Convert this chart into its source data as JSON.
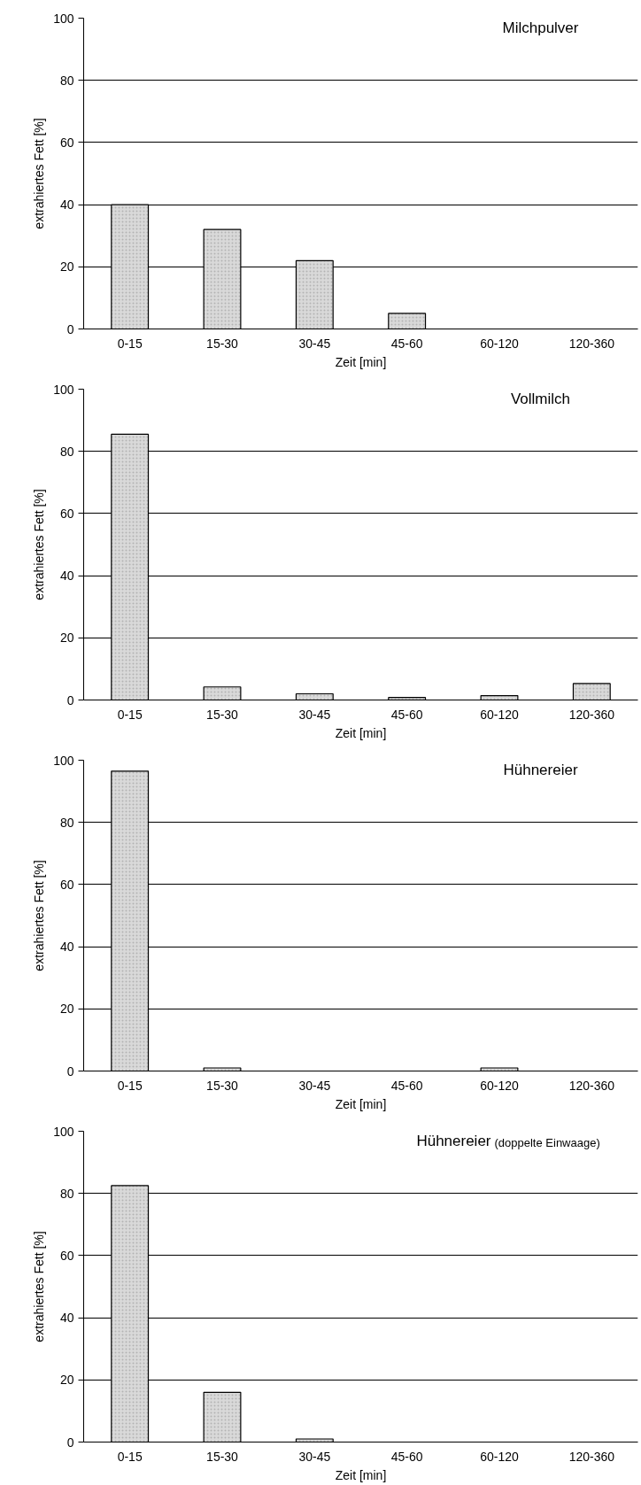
{
  "chart_data": [
    {
      "type": "bar",
      "title": "Milchpulver",
      "xlabel": "Zeit [min]",
      "ylabel": "extrahiertes Fett [%]",
      "categories": [
        "0-15",
        "15-30",
        "30-45",
        "45-60",
        "60-120",
        "120-360"
      ],
      "values": [
        40,
        32,
        22,
        5,
        0,
        0
      ],
      "color": "#d9d9d9",
      "ylim": [
        0,
        100
      ],
      "yticks": [
        0,
        20,
        40,
        60,
        80,
        100
      ],
      "grid": "y"
    },
    {
      "type": "bar",
      "title": "Vollmilch",
      "xlabel": "Zeit [min]",
      "ylabel": "extrahiertes Fett [%]",
      "categories": [
        "0-15",
        "15-30",
        "30-45",
        "45-60",
        "60-120",
        "120-360"
      ],
      "values": [
        85.5,
        4.2,
        2,
        0.8,
        1.4,
        5.3
      ],
      "color": "#d9d9d9",
      "ylim": [
        0,
        100
      ],
      "yticks": [
        0,
        20,
        40,
        60,
        80,
        100
      ],
      "grid": "y"
    },
    {
      "type": "bar",
      "title": "Hühnereier",
      "xlabel": "Zeit [min]",
      "ylabel": "extrahiertes Fett [%]",
      "categories": [
        "0-15",
        "15-30",
        "30-45",
        "45-60",
        "60-120",
        "120-360"
      ],
      "values": [
        96.5,
        1,
        0,
        0,
        1,
        0
      ],
      "color": "#d9d9d9",
      "ylim": [
        0,
        100
      ],
      "yticks": [
        0,
        20,
        40,
        60,
        80,
        100
      ],
      "grid": "y"
    },
    {
      "type": "bar",
      "title": "Hühnereier",
      "subtitle": "(doppelte Einwaage)",
      "xlabel": "Zeit [min]",
      "ylabel": "extrahiertes Fett [%]",
      "categories": [
        "0-15",
        "15-30",
        "30-45",
        "45-60",
        "60-120",
        "120-360"
      ],
      "values": [
        82.5,
        16,
        1,
        0,
        0,
        0
      ],
      "color": "#d9d9d9",
      "ylim": [
        0,
        100
      ],
      "yticks": [
        0,
        20,
        40,
        60,
        80,
        100
      ],
      "grid": "y"
    }
  ]
}
